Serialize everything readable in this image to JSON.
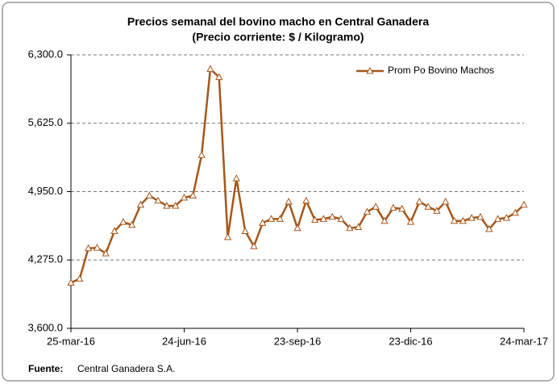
{
  "chart_data": {
    "type": "line",
    "title": "Precios semanal del bovino macho en Central Ganadera",
    "subtitle": "(Precio corriente: $ / Kilogramo)",
    "source_label": "Fuente:",
    "source": "Central Ganadera S.A.",
    "categories": [
      "25-mar-16",
      null,
      null,
      null,
      null,
      null,
      null,
      null,
      null,
      null,
      null,
      null,
      null,
      "24-jun-16",
      null,
      null,
      null,
      null,
      null,
      null,
      null,
      null,
      null,
      null,
      null,
      null,
      "23-sep-16",
      null,
      null,
      null,
      null,
      null,
      null,
      null,
      null,
      null,
      null,
      null,
      null,
      "23-dic-16",
      null,
      null,
      null,
      null,
      null,
      null,
      null,
      null,
      null,
      null,
      null,
      null,
      "24-mar-17"
    ],
    "series": [
      {
        "name": "Prom Po Bovino Machos",
        "color": "#a6561a",
        "values": [
          4050,
          4090,
          4390,
          4395,
          4340,
          4560,
          4650,
          4620,
          4820,
          4910,
          4860,
          4810,
          4810,
          4890,
          4910,
          5310,
          6160,
          6080,
          4500,
          5080,
          4560,
          4410,
          4640,
          4680,
          4680,
          4850,
          4590,
          4860,
          4670,
          4680,
          4700,
          4680,
          4590,
          4600,
          4750,
          4800,
          4660,
          4790,
          4780,
          4650,
          4850,
          4800,
          4760,
          4850,
          4660,
          4660,
          4690,
          4700,
          4580,
          4680,
          4690,
          4740,
          4820
        ]
      }
    ],
    "ylim": [
      3600,
      6300
    ],
    "yticks": [
      {
        "value": 3600,
        "label": "3,600.0"
      },
      {
        "value": 4275,
        "label": "4,275.0"
      },
      {
        "value": 4950,
        "label": "4,950.0"
      },
      {
        "value": 5625,
        "label": "5,625.0"
      },
      {
        "value": 6300,
        "label": "6,300.0"
      }
    ],
    "grid": true,
    "legend": "top-right"
  }
}
